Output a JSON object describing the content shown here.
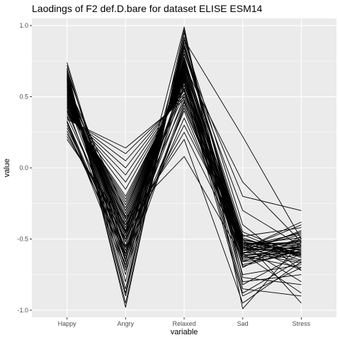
{
  "chart_data": {
    "type": "line",
    "title": "Laodings of F2 def.D.bare for dataset ELISE ESM14",
    "xlabel": "variable",
    "ylabel": "value",
    "categories": [
      "Happy",
      "Angry",
      "Relaxed",
      "Sad",
      "Stress"
    ],
    "ylim": [
      -1.05,
      1.05
    ],
    "yticks": [
      -1.0,
      -0.5,
      0.0,
      0.5,
      1.0
    ],
    "ytick_labels": [
      "-1.0",
      "-0.5",
      "0.0",
      "0.5",
      "1.0"
    ],
    "grid": true,
    "legend": "none",
    "line_color": "#000000",
    "panel_background": "#ebebeb",
    "grid_color": "#ffffff",
    "series": [
      {
        "values": [
          0.74,
          -0.62,
          0.99,
          -0.99,
          -0.52
        ]
      },
      {
        "values": [
          0.7,
          -0.98,
          0.95,
          -0.82,
          -0.6
        ]
      },
      {
        "values": [
          0.68,
          -0.95,
          0.92,
          -0.6,
          -0.88
        ]
      },
      {
        "values": [
          0.66,
          -0.9,
          0.9,
          -0.4,
          -0.72
        ]
      },
      {
        "values": [
          0.65,
          -0.85,
          0.88,
          -0.55,
          -0.46
        ]
      },
      {
        "values": [
          0.64,
          -0.8,
          0.86,
          -0.5,
          -0.95
        ]
      },
      {
        "values": [
          0.63,
          -0.75,
          0.85,
          -0.52,
          -0.58
        ]
      },
      {
        "values": [
          0.62,
          -0.7,
          0.84,
          -0.45,
          -0.62
        ]
      },
      {
        "values": [
          0.61,
          -0.66,
          0.82,
          -0.48,
          -0.42
        ]
      },
      {
        "values": [
          0.6,
          -0.62,
          0.8,
          -0.2,
          -0.3
        ]
      },
      {
        "values": [
          0.59,
          -0.58,
          0.78,
          -0.56,
          -0.66
        ]
      },
      {
        "values": [
          0.58,
          -0.55,
          0.77,
          -0.6,
          -0.5
        ]
      },
      {
        "values": [
          0.57,
          -0.52,
          0.76,
          -0.53,
          -0.54
        ]
      },
      {
        "values": [
          0.56,
          -0.5,
          0.75,
          -0.62,
          -0.7
        ]
      },
      {
        "values": [
          0.55,
          -0.48,
          0.74,
          -0.58,
          -0.45
        ]
      },
      {
        "values": [
          0.54,
          -0.46,
          0.73,
          -0.64,
          -0.57
        ]
      },
      {
        "values": [
          0.53,
          -0.44,
          0.72,
          -0.55,
          -0.8
        ]
      },
      {
        "values": [
          0.52,
          -0.42,
          0.71,
          -0.5,
          -0.6
        ]
      },
      {
        "values": [
          0.51,
          -0.4,
          0.7,
          -0.7,
          -0.48
        ]
      },
      {
        "values": [
          0.5,
          -0.38,
          0.69,
          -0.47,
          -0.63
        ]
      },
      {
        "values": [
          0.49,
          -0.36,
          0.68,
          -0.57,
          -0.4
        ]
      },
      {
        "values": [
          0.48,
          -0.34,
          0.67,
          -0.75,
          -0.68
        ]
      },
      {
        "values": [
          0.47,
          -0.32,
          0.66,
          -0.54,
          -0.52
        ]
      },
      {
        "values": [
          0.46,
          -0.3,
          0.65,
          -0.8,
          -0.75
        ]
      },
      {
        "values": [
          0.45,
          -0.28,
          0.64,
          -0.51,
          -0.56
        ]
      },
      {
        "values": [
          0.44,
          -0.26,
          0.63,
          -0.85,
          -0.9
        ]
      },
      {
        "values": [
          0.43,
          -0.24,
          0.62,
          -0.6,
          -0.44
        ]
      },
      {
        "values": [
          0.42,
          -0.22,
          0.61,
          -0.88,
          -0.64
        ]
      },
      {
        "values": [
          0.41,
          -0.2,
          0.6,
          -0.62,
          -0.55
        ]
      },
      {
        "values": [
          0.4,
          -0.15,
          0.58,
          -0.56,
          -0.61
        ]
      },
      {
        "values": [
          0.39,
          -0.1,
          0.56,
          -0.9,
          -0.7
        ]
      },
      {
        "values": [
          0.38,
          -0.05,
          0.55,
          -0.57,
          -0.47
        ]
      },
      {
        "values": [
          0.37,
          0.0,
          0.54,
          -0.65,
          -0.59
        ]
      },
      {
        "values": [
          0.36,
          0.05,
          0.52,
          -0.52,
          -0.65
        ]
      },
      {
        "values": [
          0.35,
          0.1,
          0.5,
          -0.58,
          -0.51
        ]
      },
      {
        "values": [
          0.34,
          0.14,
          0.48,
          -0.68,
          -0.58
        ]
      },
      {
        "values": [
          0.33,
          -0.68,
          0.46,
          -0.54,
          -0.49
        ]
      },
      {
        "values": [
          0.32,
          -0.72,
          0.44,
          -0.59,
          -0.67
        ]
      },
      {
        "values": [
          0.3,
          -0.64,
          0.42,
          -0.53,
          -0.53
        ]
      },
      {
        "values": [
          0.28,
          -0.56,
          0.4,
          -0.61,
          -0.6
        ]
      },
      {
        "values": [
          0.26,
          -0.6,
          0.35,
          -0.55,
          -0.57
        ]
      },
      {
        "values": [
          0.24,
          -0.5,
          0.3,
          -0.5,
          -0.62
        ]
      },
      {
        "values": [
          0.22,
          -0.45,
          0.25,
          -0.58,
          -0.54
        ]
      },
      {
        "values": [
          0.2,
          -0.4,
          0.2,
          -0.95,
          -0.66
        ]
      },
      {
        "values": [
          0.55,
          -0.35,
          0.08,
          -0.63,
          -0.59
        ]
      },
      {
        "values": [
          0.72,
          -0.66,
          0.9,
          0.22,
          -0.5
        ]
      },
      {
        "values": [
          0.69,
          -0.55,
          0.8,
          -0.3,
          -0.55
        ]
      },
      {
        "values": [
          0.67,
          -0.45,
          0.72,
          -0.1,
          -0.52
        ]
      },
      {
        "values": [
          0.58,
          -0.3,
          0.68,
          -0.57,
          -0.38
        ]
      },
      {
        "values": [
          0.47,
          -0.6,
          0.66,
          -0.66,
          -0.61
        ]
      },
      {
        "values": [
          0.43,
          -0.7,
          0.64,
          -0.58,
          -0.56
        ]
      },
      {
        "values": [
          0.61,
          -0.48,
          0.62,
          -0.49,
          -0.63
        ]
      },
      {
        "values": [
          0.36,
          -0.52,
          0.6,
          -0.69,
          -0.58
        ]
      },
      {
        "values": [
          0.52,
          -0.64,
          0.58,
          -0.53,
          -0.72
        ]
      },
      {
        "values": [
          0.45,
          -0.42,
          0.56,
          -0.6,
          -0.55
        ]
      },
      {
        "values": [
          0.57,
          -0.38,
          0.52,
          -0.56,
          -0.6
        ]
      },
      {
        "values": [
          0.4,
          -0.58,
          0.5,
          -0.66,
          -0.5
        ]
      },
      {
        "values": [
          0.5,
          -0.46,
          0.47,
          -0.62,
          -0.57
        ]
      },
      {
        "values": [
          0.63,
          -0.88,
          0.97,
          -0.77,
          -0.82
        ]
      },
      {
        "values": [
          0.33,
          -0.62,
          0.65,
          -0.52,
          -0.6
        ]
      }
    ]
  }
}
